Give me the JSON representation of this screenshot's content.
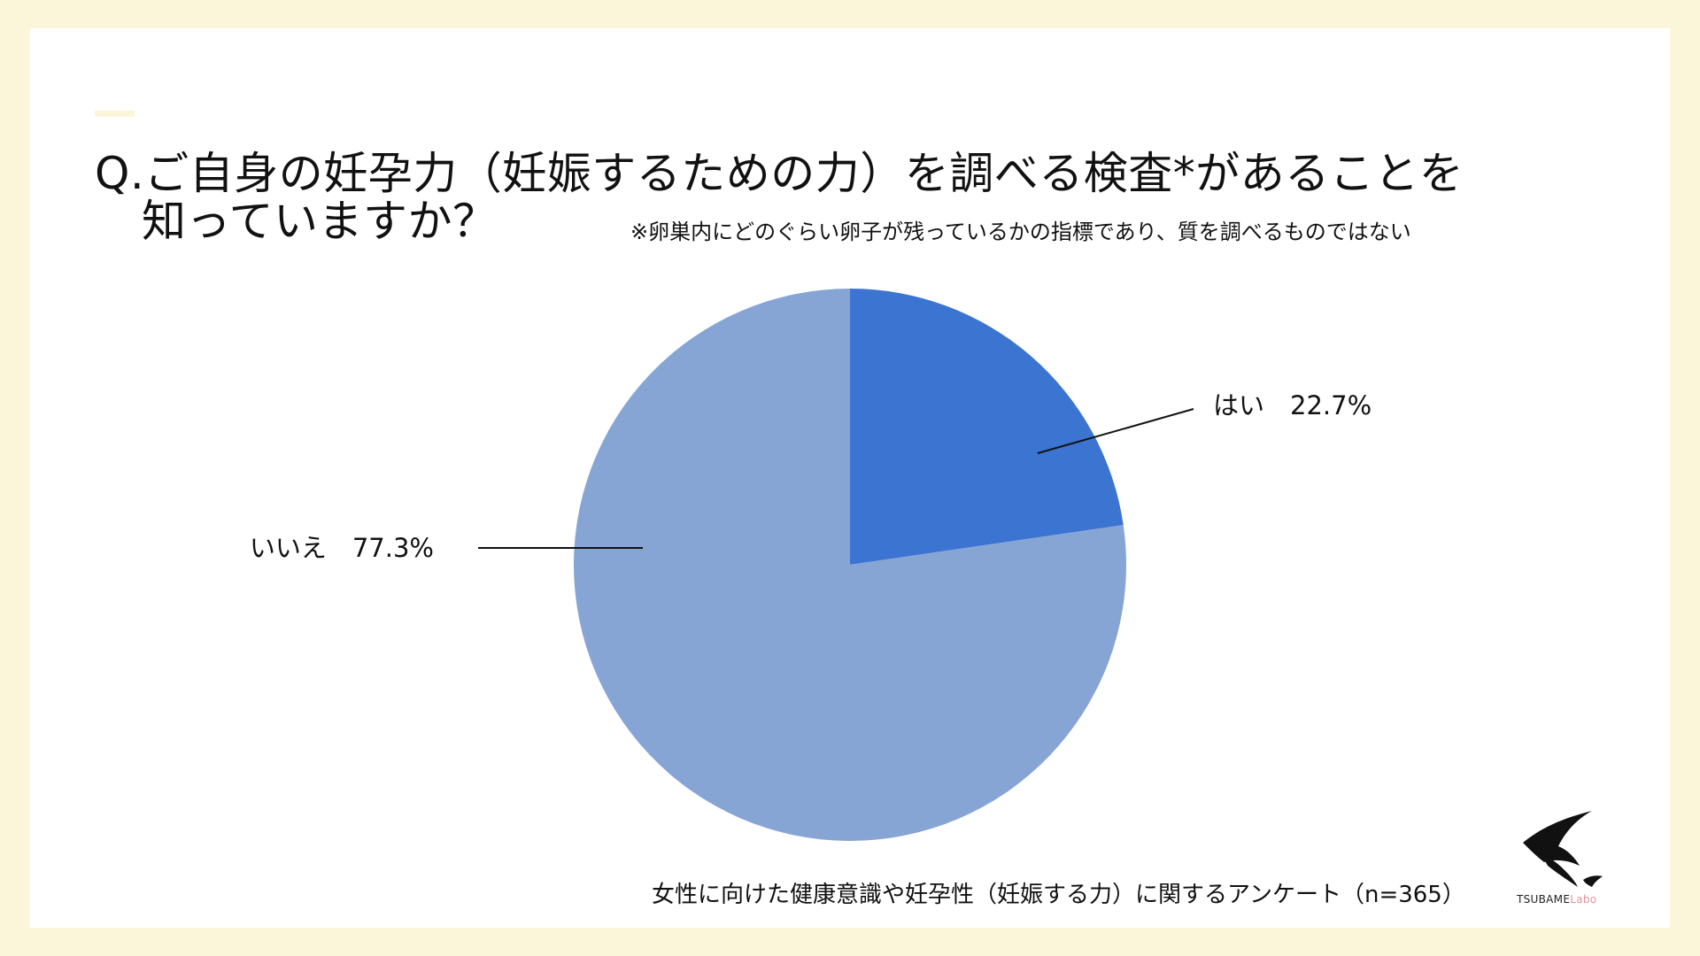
{
  "title": {
    "line1": "Q.ご自身の妊孕力（妊娠するための力）を調べる検査*があることを",
    "line2": "知っていますか？"
  },
  "note": "※卵巣内にどのぐらい卵子が残っているかの指標であり、質を調べるものではない",
  "footer": "女性に向けた健康意識や妊孕性（妊娠する力）に関するアンケート（n=365）",
  "logo": {
    "text_main": "TSUBAME",
    "text_sub": "Labo",
    "icon": "swallow-icon"
  },
  "colors": {
    "background": "#fbf6d9",
    "card": "#ffffff",
    "yes": "#3c74d1",
    "no": "#87a5d4"
  },
  "chart_data": {
    "type": "pie",
    "categories": [
      "はい",
      "いいえ"
    ],
    "values": [
      22.7,
      77.3
    ],
    "labels": [
      "はい　22.7%",
      "いいえ　77.3%"
    ],
    "start": "12 o'clock",
    "direction": "clockwise"
  }
}
